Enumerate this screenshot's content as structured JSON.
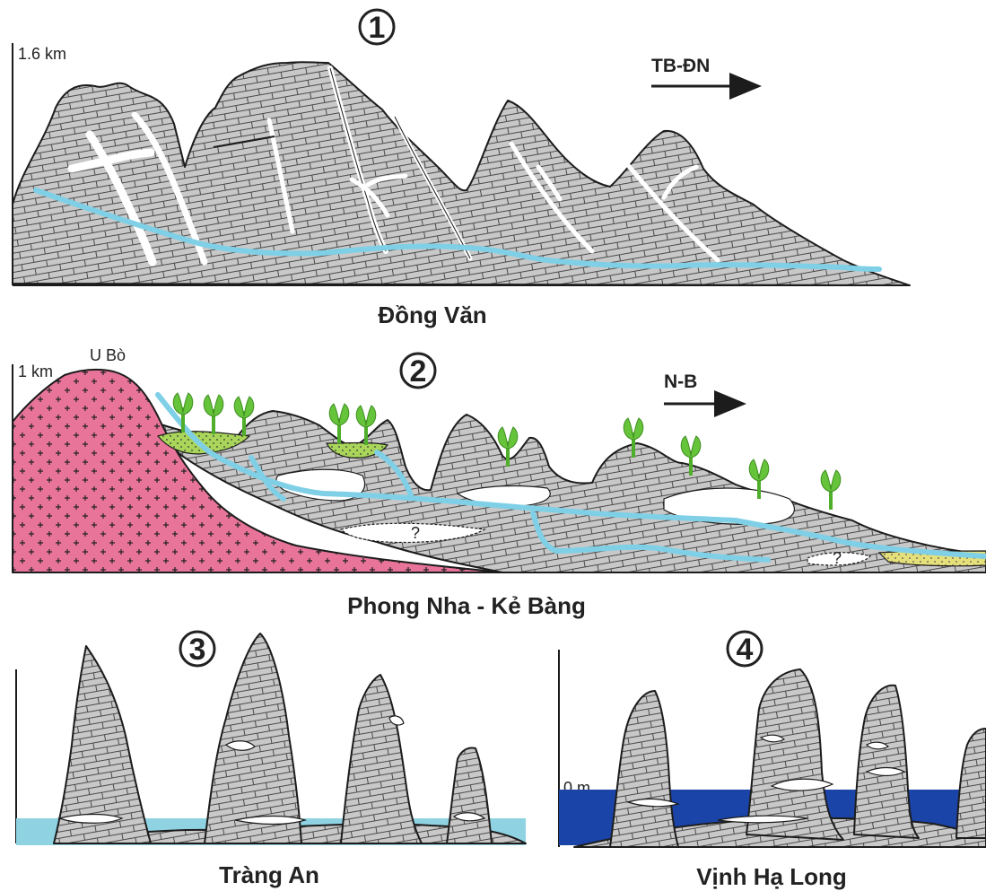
{
  "panels": [
    {
      "number": "1",
      "title": "Đồng Văn",
      "axis_label": "1.6 km",
      "direction": "TB-ĐN"
    },
    {
      "number": "2",
      "title": "Phong Nha - Kẻ Bàng",
      "axis_label": "1 km",
      "direction": "N-B",
      "peak_label": "U Bò"
    },
    {
      "number": "3",
      "title": "Tràng An"
    },
    {
      "number": "4",
      "title": "Vịnh Hạ Long",
      "axis_label": "0 m"
    }
  ],
  "question_mark": "?",
  "colors": {
    "limestone": "#c8c8c8",
    "granite": "#e8749a",
    "river": "#7fd0e6",
    "sea_shallow": "#8fd3e3",
    "sea_deep": "#1b44a8",
    "sediment": "#e6e07a",
    "vegetation": "#66c43a"
  }
}
